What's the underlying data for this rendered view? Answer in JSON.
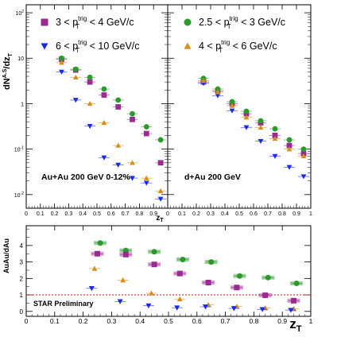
{
  "chart_data": [
    {
      "type": "scatter",
      "panel": "Au+Au",
      "ylabel": "dN^{A.S}/dz_T",
      "xlabel": "z_T",
      "yscale": "log",
      "xlim": [
        0,
        1
      ],
      "ylim": [
        0.005,
        150
      ],
      "grid": false,
      "legend_position": "top",
      "annotation": "Au+Au 200 GeV 0-12%",
      "x_ticks": [
        "0",
        "0.1",
        "0.2",
        "0.3",
        "0.4",
        "0.5",
        "0.6",
        "0.7",
        "0.8",
        "0.9"
      ],
      "y_ticks": [
        "10^{-2}",
        "10^{-1}",
        "1",
        "10",
        "10^{2}"
      ],
      "series": [
        {
          "name": "3 < p_T^{trig} < 4 GeV/c",
          "marker": "square",
          "color": "#9b2a93",
          "x": [
            0.25,
            0.35,
            0.45,
            0.55,
            0.65,
            0.75,
            0.85,
            0.95
          ],
          "y": [
            9.5,
            5.5,
            3.0,
            1.55,
            0.85,
            0.45,
            0.22,
            0.05
          ]
        },
        {
          "name": "2.5 < p_T^{trig} < 3 GeV/c",
          "marker": "circle",
          "color": "#2a9a2a",
          "x": [
            0.25,
            0.35,
            0.45,
            0.55,
            0.65,
            0.75,
            0.85,
            0.95
          ],
          "y": [
            10.0,
            5.7,
            3.8,
            2.1,
            1.2,
            0.6,
            0.31,
            0.16
          ]
        },
        {
          "name": "6 < p_T^{trig} < 10 GeV/c",
          "marker": "triangle-down",
          "color": "#1a2ae8",
          "x": [
            0.25,
            0.35,
            0.45,
            0.55,
            0.65,
            0.75,
            0.85,
            0.95
          ],
          "y": [
            5.0,
            1.2,
            0.32,
            0.065,
            0.045,
            0.023,
            0.018,
            0.008
          ]
        },
        {
          "name": "4 < p_T^{trig} < 6 GeV/c",
          "marker": "triangle-up",
          "color": "#d4901a",
          "x": [
            0.25,
            0.35,
            0.45,
            0.55,
            0.65,
            0.75,
            0.85,
            0.95
          ],
          "y": [
            8.0,
            3.8,
            1.0,
            0.38,
            0.12,
            0.05,
            0.023,
            0.012
          ]
        }
      ]
    },
    {
      "type": "scatter",
      "panel": "d+Au",
      "xlabel": "z_T",
      "yscale": "log",
      "xlim": [
        0,
        1
      ],
      "ylim": [
        0.005,
        150
      ],
      "grid": false,
      "annotation": "d+Au 200 GeV",
      "x_ticks": [
        "0",
        "0.1",
        "0.2",
        "0.3",
        "0.4",
        "0.5",
        "0.6",
        "0.7",
        "0.8",
        "0.9",
        "1"
      ],
      "series": [
        {
          "name": "3 < p_T^{trig} < 4 GeV/c",
          "marker": "square",
          "color": "#9b2a93",
          "x": [
            0.25,
            0.35,
            0.45,
            0.55,
            0.65,
            0.75,
            0.85,
            0.95
          ],
          "y": [
            3.0,
            1.9,
            1.0,
            0.6,
            0.38,
            0.2,
            0.12,
            0.08
          ]
        },
        {
          "name": "2.5 < p_T^{trig} < 3 GeV/c",
          "marker": "circle",
          "color": "#2a9a2a",
          "x": [
            0.25,
            0.35,
            0.45,
            0.55,
            0.65,
            0.75,
            0.85,
            0.95
          ],
          "y": [
            3.6,
            2.1,
            1.1,
            0.68,
            0.42,
            0.28,
            0.16,
            0.1
          ]
        },
        {
          "name": "6 < p_T^{trig} < 10 GeV/c",
          "marker": "triangle-down",
          "color": "#1a2ae8",
          "x": [
            0.25,
            0.35,
            0.45,
            0.55,
            0.65,
            0.75,
            0.85,
            0.95
          ],
          "y": [
            2.8,
            1.5,
            0.7,
            0.3,
            0.15,
            0.07,
            0.04,
            0.025
          ]
        },
        {
          "name": "4 < p_T^{trig} < 6 GeV/c",
          "marker": "triangle-up",
          "color": "#d4901a",
          "x": [
            0.25,
            0.35,
            0.45,
            0.55,
            0.65,
            0.75,
            0.85,
            0.95
          ],
          "y": [
            3.2,
            1.8,
            0.9,
            0.5,
            0.3,
            0.17,
            0.1,
            0.07
          ]
        }
      ]
    },
    {
      "type": "scatter",
      "panel": "ratio",
      "ylabel": "AuAu/dAu",
      "xlabel": "z_T",
      "xlim": [
        0,
        1
      ],
      "ylim": [
        -0.3,
        5.2
      ],
      "grid": false,
      "reference_line": 1,
      "annotation": "STAR Preliminary",
      "x_ticks": [
        "0",
        "0.1",
        "0.2",
        "0.3",
        "0.4",
        "0.5",
        "0.6",
        "0.7",
        "0.8",
        "0.9",
        "1"
      ],
      "y_ticks": [
        "0",
        "1",
        "2",
        "3",
        "4"
      ],
      "series": [
        {
          "name": "2.5 < p_T^{trig} < 3 GeV/c",
          "marker": "circle",
          "color": "#2a9a2a",
          "x": [
            0.26,
            0.35,
            0.45,
            0.55,
            0.65,
            0.75,
            0.85,
            0.95
          ],
          "y": [
            4.15,
            3.7,
            3.62,
            3.15,
            3.0,
            2.15,
            2.05,
            1.7
          ]
        },
        {
          "name": "3 < p_T^{trig} < 4 GeV/c",
          "marker": "square",
          "color": "#9b2a93",
          "x": [
            0.25,
            0.35,
            0.45,
            0.54,
            0.64,
            0.74,
            0.84,
            0.94
          ],
          "y": [
            3.5,
            3.45,
            2.85,
            2.3,
            1.75,
            1.45,
            0.98,
            0.65
          ]
        },
        {
          "name": "4 < p_T^{trig} < 6 GeV/c",
          "marker": "triangle-up",
          "color": "#d4901a",
          "x": [
            0.24,
            0.34,
            0.44,
            0.54,
            0.64,
            0.74,
            0.84,
            0.94
          ],
          "y": [
            2.6,
            1.9,
            1.1,
            0.75,
            0.4,
            0.3,
            0.2,
            0.15
          ]
        },
        {
          "name": "6 < p_T^{trig} < 10 GeV/c",
          "marker": "triangle-down",
          "color": "#1a2ae8",
          "x": [
            0.23,
            0.33,
            0.43,
            0.53,
            0.63,
            0.73,
            0.83,
            0.93
          ],
          "y": [
            1.4,
            0.6,
            0.35,
            0.22,
            0.28,
            0.18,
            0.12,
            0.08
          ]
        }
      ]
    }
  ],
  "legend": [
    {
      "label": "3 < p_T^{trig} < 4 GeV/c",
      "marker": "square",
      "color": "#9b2a93"
    },
    {
      "label": "6 < p_T^{trig} < 10 GeV/c",
      "marker": "triangle-down",
      "color": "#1a2ae8"
    },
    {
      "label": "2.5 < p_T^{trig} < 3 GeV/c",
      "marker": "circle",
      "color": "#2a9a2a"
    },
    {
      "label": "4 < p_T^{trig} < 6 GeV/c",
      "marker": "triangle-up",
      "color": "#d4901a"
    }
  ],
  "reference_line_color": "#d01010"
}
